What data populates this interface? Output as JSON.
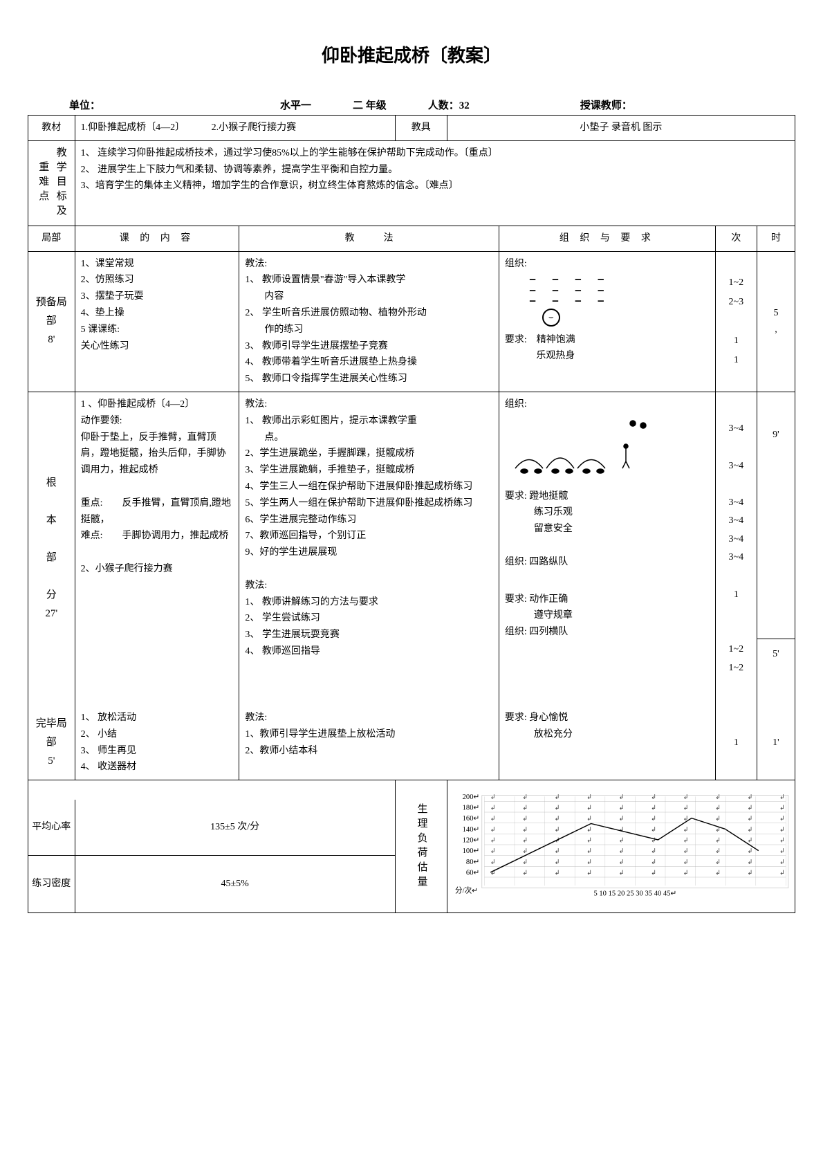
{
  "title": "仰卧推起成桥〔教案〕",
  "header": {
    "unit_label": "单位：",
    "level_label": "水平一",
    "grade_label": "二 年级",
    "count_label": "人数：32",
    "teacher_label": "授课教师："
  },
  "row1": {
    "label": "教材",
    "content1": "1.仰卧推起成桥〔4—2〕",
    "content2": "2.小猴子爬行接力赛",
    "tools_label": "教具",
    "tools": "小垫子 录音机 图示"
  },
  "row2": {
    "label": "教学目标及重难点",
    "l1": "1、 连续学习仰卧推起成桥技术，通过学习使85%以上的学生能够在保护帮助下完成动作。〔重点〕",
    "l2": "2、 进展学生上下肢力气和柔韧、协调等素养，提高学生平衡和自控力量。",
    "l3": "3、培育学生的集体主义精神，增加学生的合作意识，树立终生体育熬炼的信念。〔难点〕"
  },
  "tableHead": {
    "c1": "局部",
    "c2": "课 的 内 容",
    "c3": "教　　　法",
    "c4": "组 织 与 要 求",
    "c5": "次",
    "c6": "时"
  },
  "prep": {
    "section": "预备局部\n8'",
    "content": "1、课堂常规\n2、仿照练习\n3、摆垫子玩耍\n4、垫上操\n5 课课练:\n关心性练习",
    "method": "教法:\n1、 教师设置情景\"春游\"导入本课教学\n　　内容\n2、 学生听音乐进展仿照动物、植物外形动\n　　作的练习\n3、 教师引导学生进展摆垫子竞赛\n4、 教师带着学生听音乐进展垫上热身操\n5、 教师口令指挥学生进展关心性练习",
    "org_head": "组织:",
    "org_req": "要求:　精神饱满\n　　　  乐观热身",
    "times": "1~2\n2~3\n\n1\n1",
    "duration": "5\n,"
  },
  "main": {
    "section": "根\n\n本\n\n部\n\n分\n27'",
    "content": "1 、仰卧推起成桥〔4—2〕\n动作要领:\n仰卧于垫上，反手推臂，直臂顶肩，蹬地挺髋，抬头后仰，手脚协调用力，推起成桥\n\n重点:　　反手推臂，直臂顶肩,蹬地挺髋，\n难点:　　手脚协调用力，推起成桥\n\n2、小猴子爬行接力赛",
    "method": "教法:\n1、 教师出示彩虹图片，提示本课教学重\n　　点。\n2、学生进展跪坐，手握脚踝，挺髋成桥\n 3、学生进展跪躺，手推垫子，挺髋成桥\n4、学生三人一组在保护帮助下进展仰卧推起成桥练习\n5、学生两人一组在保护帮助下进展仰卧推起成桥练习\n6、学生进展完整动作练习\n7、教师巡回指导，个别订正\n9、好的学生进展展现\n\n教法:\n1、 教师讲解练习的方法与要求\n2、 学生尝试练习\n3、 学生进展玩耍竞赛\n4、 教师巡回指导",
    "org_head": "组织:",
    "org_req1": "要求: 蹬地挺髋\n　　　练习乐观\n　　　留意安全\n\n组织: 四路纵队",
    "org_req2": "要求: 动作正确\n　　　遵守规章\n组织: 四列横队",
    "times": "3~4\n\n3~4\n\n3~4\n3~4\n3~4\n3~4\n\n1\n\n\n1~2\n1~2",
    "duration1": "9'",
    "duration2": "5'"
  },
  "end": {
    "section": "完毕局部\n5'",
    "content": "1、 放松活动\n2、 小结\n3、 师生再见\n4、 收送器材",
    "method": "教法:\n1、教师引导学生进展垫上放松活动\n2、教师小结本科",
    "org": "要求: 身心愉悦\n　　　放松充分",
    "times": "1",
    "duration": "1'"
  },
  "bottom": {
    "hr_label": "平均心率",
    "hr_value": "135±5 次/分",
    "density_label": "练习密度",
    "density_value": "45±5%",
    "load_label": "生理负荷估量"
  },
  "chart": {
    "y_ticks": [
      200,
      180,
      160,
      140,
      120,
      100,
      80,
      60
    ],
    "x_ticks": [
      5,
      10,
      15,
      20,
      25,
      30,
      35,
      40,
      45
    ],
    "y_label": "分/次",
    "series": [
      60,
      90,
      120,
      150,
      135,
      120,
      160,
      140,
      100
    ],
    "line_color": "#000000",
    "grid_color": "#888888",
    "bg": "#ffffff"
  }
}
